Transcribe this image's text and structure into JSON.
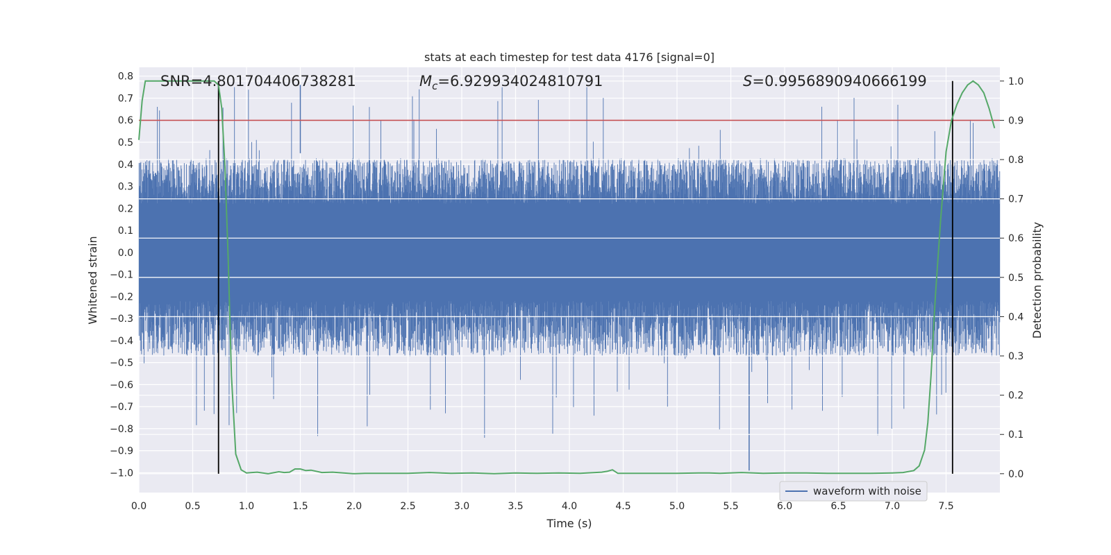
{
  "chart_data": {
    "type": "line",
    "title": "stats at each timestep for test data 4176 [signal=0]",
    "xlabel": "Time (s)",
    "ylabel_left": "Whitened strain",
    "ylabel_right": "Detection probability",
    "xlim": [
      0.0,
      8.0
    ],
    "ylim_left": [
      -1.09,
      0.84
    ],
    "ylim_right": [
      -0.048,
      1.035
    ],
    "x_ticks": [
      "0.0",
      "0.5",
      "1.0",
      "1.5",
      "2.0",
      "2.5",
      "3.0",
      "3.5",
      "4.0",
      "4.5",
      "5.0",
      "5.5",
      "6.0",
      "6.5",
      "7.0",
      "7.5"
    ],
    "y_left_ticks": [
      "0.8",
      "0.7",
      "0.6",
      "0.5",
      "0.4",
      "0.3",
      "0.2",
      "0.1",
      "0.0",
      "−0.1",
      "−0.2",
      "−0.3",
      "−0.4",
      "−0.5",
      "−0.6",
      "−0.7",
      "−0.8",
      "−0.9",
      "−1.0"
    ],
    "y_right_ticks": [
      "1.0",
      "0.9",
      "0.8",
      "0.7",
      "0.6",
      "0.5",
      "0.4",
      "0.3",
      "0.2",
      "0.1",
      "0.0"
    ],
    "annotations": {
      "snr": "SNR=4.801704406738281",
      "mc_symbol": "M",
      "mc_sub": "c",
      "mc_value": "=6.929934024810791",
      "s_symbol": "S",
      "s_value": "=0.9956890940666199"
    },
    "threshold": {
      "value": 0.9,
      "axis": "right",
      "color": "#c44e52"
    },
    "vertical_markers": [
      0.74,
      7.56
    ],
    "legend": {
      "label": "waveform with noise",
      "position": "lower-right"
    },
    "series": [
      {
        "name": "waveform with noise",
        "axis": "left",
        "color": "#4c72b0",
        "kind": "noise",
        "core_amplitude": 0.22,
        "typical_peak": 0.45,
        "max": 0.76,
        "min": -0.99
      },
      {
        "axis": "right",
        "color": "#55a868",
        "x": [
          0.0,
          0.03,
          0.06,
          0.1,
          0.15,
          0.2,
          0.3,
          0.4,
          0.5,
          0.6,
          0.65,
          0.7,
          0.74,
          0.77,
          0.8,
          0.83,
          0.86,
          0.9,
          0.95,
          1.0,
          1.05,
          1.1,
          1.2,
          1.3,
          1.35,
          1.4,
          1.45,
          1.5,
          1.55,
          1.6,
          1.7,
          1.8,
          1.9,
          2.0,
          2.1,
          2.3,
          2.5,
          2.7,
          2.9,
          3.1,
          3.3,
          3.5,
          3.7,
          3.9,
          4.1,
          4.3,
          4.35,
          4.4,
          4.45,
          4.5,
          4.6,
          4.8,
          5.0,
          5.2,
          5.3,
          5.4,
          5.6,
          5.8,
          6.0,
          6.2,
          6.4,
          6.6,
          6.8,
          7.0,
          7.1,
          7.2,
          7.25,
          7.3,
          7.33,
          7.36,
          7.4,
          7.45,
          7.5,
          7.55,
          7.6,
          7.65,
          7.7,
          7.75,
          7.8,
          7.85,
          7.9,
          7.95
        ],
        "y": [
          0.85,
          0.95,
          1.0,
          1.0,
          1.0,
          1.0,
          1.0,
          1.0,
          1.0,
          1.0,
          1.0,
          1.0,
          0.99,
          0.93,
          0.78,
          0.55,
          0.25,
          0.05,
          0.01,
          0.002,
          0.003,
          0.004,
          0.0,
          0.005,
          0.003,
          0.004,
          0.012,
          0.012,
          0.008,
          0.009,
          0.003,
          0.004,
          0.002,
          0.0,
          0.001,
          0.001,
          0.001,
          0.003,
          0.001,
          0.002,
          0.0,
          0.002,
          0.001,
          0.002,
          0.001,
          0.004,
          0.006,
          0.01,
          0.001,
          0.001,
          0.001,
          0.001,
          0.001,
          0.002,
          0.002,
          0.001,
          0.003,
          0.001,
          0.002,
          0.002,
          0.001,
          0.001,
          0.001,
          0.002,
          0.003,
          0.008,
          0.02,
          0.06,
          0.13,
          0.25,
          0.45,
          0.65,
          0.82,
          0.9,
          0.94,
          0.97,
          0.99,
          1.0,
          0.99,
          0.97,
          0.93,
          0.88
        ]
      }
    ]
  }
}
